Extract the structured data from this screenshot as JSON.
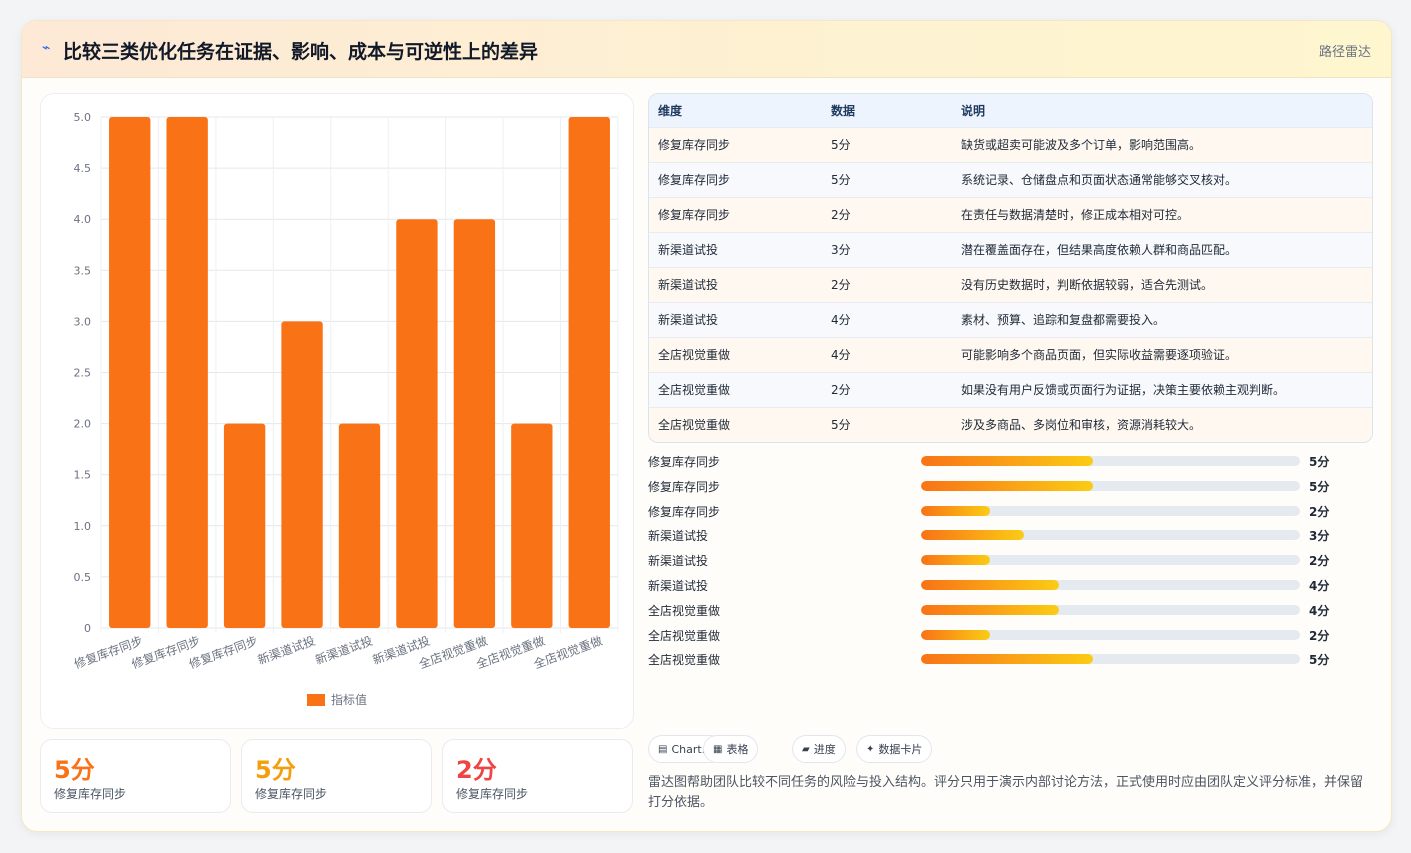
{
  "header": {
    "icon": "lightning-icon",
    "title": "比较三类优化任务在证据、影响、成本与可逆性上的差异",
    "tag": "路径雷达"
  },
  "chart_data": {
    "type": "bar",
    "categories": [
      "修复库存同步",
      "修复库存同步",
      "修复库存同步",
      "新渠道试投",
      "新渠道试投",
      "新渠道试投",
      "全店视觉重做",
      "全店视觉重做",
      "全店视觉重做"
    ],
    "series": [
      {
        "name": "指标值",
        "values": [
          5,
          5,
          2,
          3,
          2,
          4,
          4,
          2,
          5
        ]
      }
    ],
    "yticks": [
      "0",
      "0.5",
      "1.0",
      "1.5",
      "2.0",
      "2.5",
      "3.0",
      "3.5",
      "4.0",
      "4.5",
      "5.0"
    ],
    "ylim": [
      0,
      5
    ],
    "grid": true,
    "legend": "bottom",
    "bar_color": "#f97316"
  },
  "stats": [
    {
      "value": "5分",
      "label": "修复库存同步",
      "color": "#f97316"
    },
    {
      "value": "5分",
      "label": "修复库存同步",
      "color": "#f59e0b"
    },
    {
      "value": "2分",
      "label": "修复库存同步",
      "color": "#ef4444"
    }
  ],
  "table": {
    "headers": [
      "维度",
      "数据",
      "说明"
    ],
    "rows": [
      {
        "dim": "修复库存同步",
        "data": "5分",
        "desc": "缺货或超卖可能波及多个订单，影响范围高。"
      },
      {
        "dim": "修复库存同步",
        "data": "5分",
        "desc": "系统记录、仓储盘点和页面状态通常能够交叉核对。"
      },
      {
        "dim": "修复库存同步",
        "data": "2分",
        "desc": "在责任与数据清楚时，修正成本相对可控。"
      },
      {
        "dim": "新渠道试投",
        "data": "3分",
        "desc": "潜在覆盖面存在，但结果高度依赖人群和商品匹配。"
      },
      {
        "dim": "新渠道试投",
        "data": "2分",
        "desc": "没有历史数据时，判断依据较弱，适合先测试。"
      },
      {
        "dim": "新渠道试投",
        "data": "4分",
        "desc": "素材、预算、追踪和复盘都需要投入。"
      },
      {
        "dim": "全店视觉重做",
        "data": "4分",
        "desc": "可能影响多个商品页面，但实际收益需要逐项验证。"
      },
      {
        "dim": "全店视觉重做",
        "data": "2分",
        "desc": "如果没有用户反馈或页面行为证据，决策主要依赖主观判断。"
      },
      {
        "dim": "全店视觉重做",
        "data": "5分",
        "desc": "涉及多商品、多岗位和审核，资源消耗较大。"
      }
    ]
  },
  "progress": {
    "max": 11,
    "items": [
      {
        "label": "修复库存同步",
        "value": 5,
        "text": "5分"
      },
      {
        "label": "修复库存同步",
        "value": 5,
        "text": "5分"
      },
      {
        "label": "修复库存同步",
        "value": 2,
        "text": "2分"
      },
      {
        "label": "新渠道试投",
        "value": 3,
        "text": "3分"
      },
      {
        "label": "新渠道试投",
        "value": 2,
        "text": "2分"
      },
      {
        "label": "新渠道试投",
        "value": 4,
        "text": "4分"
      },
      {
        "label": "全店视觉重做",
        "value": 4,
        "text": "4分"
      },
      {
        "label": "全店视觉重做",
        "value": 2,
        "text": "2分"
      },
      {
        "label": "全店视觉重做",
        "value": 5,
        "text": "5分"
      }
    ]
  },
  "chips": [
    {
      "icon": "chart-icon",
      "glyph": "▤",
      "label": "Chart.js"
    },
    {
      "icon": "table-icon",
      "glyph": "▦",
      "label": "表格"
    },
    {
      "icon": "progress-icon",
      "glyph": "▰",
      "label": "进度"
    },
    {
      "icon": "sparkle-icon",
      "glyph": "✦",
      "label": "数据卡片"
    }
  ],
  "note": "雷达图帮助团队比较不同任务的风险与投入结构。评分只用于演示内部讨论方法，正式使用时应由团队定义评分标准，并保留打分依据。"
}
